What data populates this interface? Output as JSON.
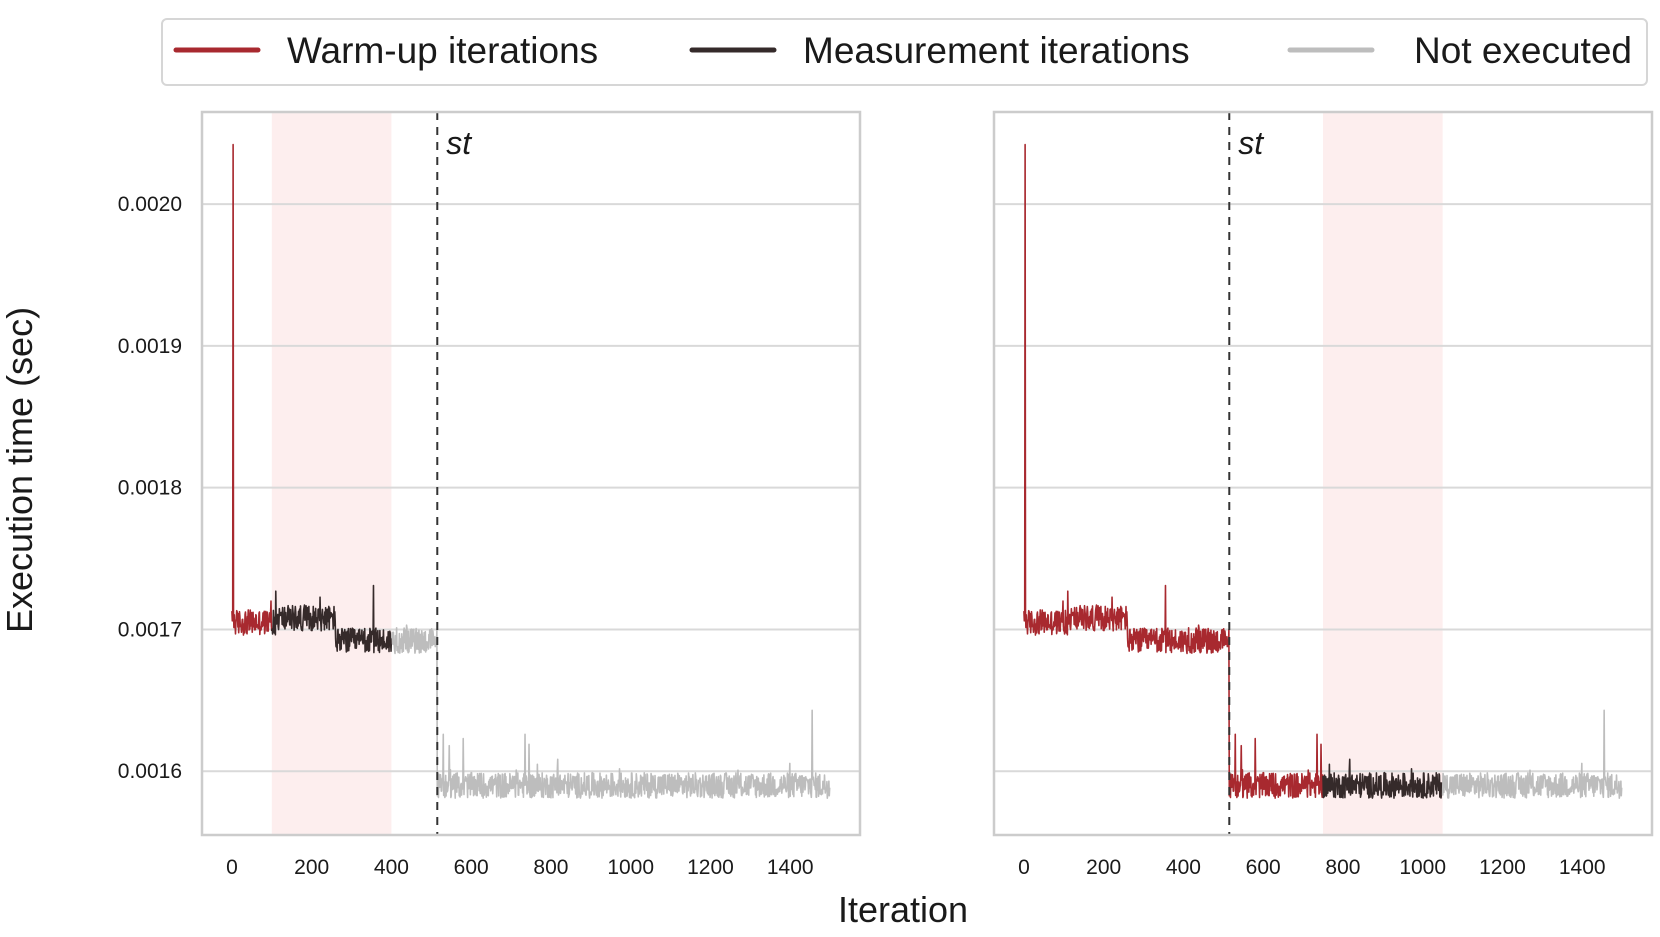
{
  "chart_data": {
    "type": "line",
    "xlabel": "Iteration",
    "ylabel": "Execution time (sec)",
    "xlim": [
      -75,
      1575
    ],
    "ylim": [
      0.001555,
      0.002065
    ],
    "x_ticks": [
      "0",
      "200",
      "400",
      "600",
      "800",
      "1000",
      "1200",
      "1400"
    ],
    "x_tick_values": [
      0,
      200,
      400,
      600,
      800,
      1000,
      1200,
      1400
    ],
    "y_ticks": [
      "0.0016",
      "0.0017",
      "0.0018",
      "0.0019",
      "0.0020"
    ],
    "y_tick_values": [
      0.0016,
      0.0017,
      0.0018,
      0.0019,
      0.002
    ],
    "grid": "horizontal",
    "legend_position": "top",
    "legend": [
      {
        "label": "Warm-up iterations",
        "color": "#a8292f"
      },
      {
        "label": "Measurement iterations",
        "color": "#352a2a"
      },
      {
        "label": "Not executed",
        "color": "#bdbdbd"
      }
    ],
    "steady_state": {
      "label": "st",
      "x": 515
    },
    "profile": {
      "total_iterations": 1500,
      "spike": {
        "x": 3,
        "value": 0.002042
      },
      "pre_change_level": 0.0017,
      "post_change_level": 0.00159,
      "change_point_x": 515,
      "outliers": [
        {
          "x": 98,
          "value": 0.00172
        },
        {
          "x": 110,
          "value": 0.001727
        },
        {
          "x": 355,
          "value": 0.001731
        },
        {
          "x": 530,
          "value": 0.001626
        },
        {
          "x": 545,
          "value": 0.001618
        },
        {
          "x": 580,
          "value": 0.001623
        },
        {
          "x": 735,
          "value": 0.001626
        },
        {
          "x": 745,
          "value": 0.001619
        },
        {
          "x": 1455,
          "value": 0.001643
        }
      ]
    },
    "panels": [
      {
        "measurement_window": [
          100,
          400
        ],
        "segments": [
          {
            "series": "Warm-up iterations",
            "range": [
              0,
              100
            ]
          },
          {
            "series": "Measurement iterations",
            "range": [
              100,
              400
            ]
          },
          {
            "series": "Not executed",
            "range": [
              400,
              1500
            ]
          }
        ]
      },
      {
        "measurement_window": [
          750,
          1050
        ],
        "segments": [
          {
            "series": "Warm-up iterations",
            "range": [
              0,
              750
            ]
          },
          {
            "series": "Measurement iterations",
            "range": [
              750,
              1050
            ]
          },
          {
            "series": "Not executed",
            "range": [
              1050,
              1500
            ]
          }
        ]
      }
    ]
  }
}
